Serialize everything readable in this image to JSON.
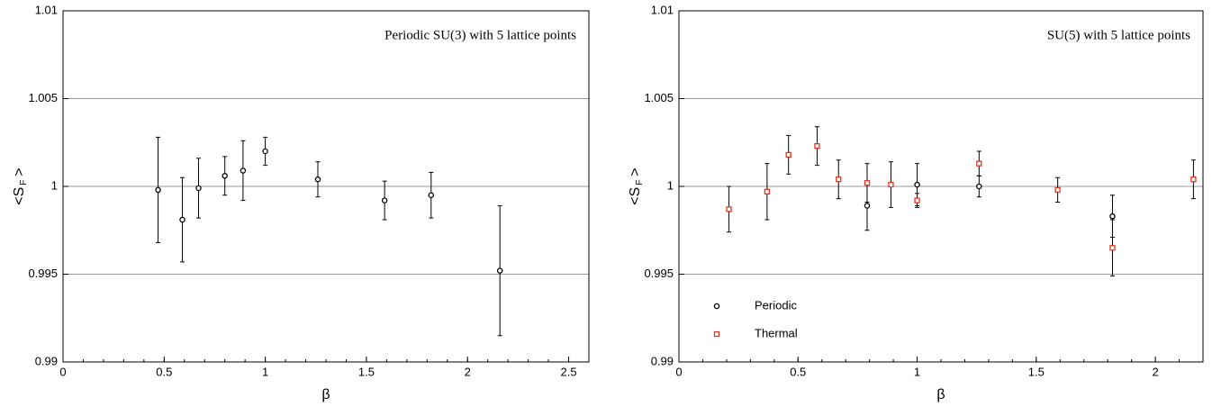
{
  "chart_data": [
    {
      "type": "scatter",
      "annotation": "Periodic SU(3) with 5 lattice points",
      "xlabel": "β",
      "ylabel": [
        "<S",
        "F",
        ">"
      ],
      "xlim": [
        0,
        2.6
      ],
      "xticks": [
        0,
        0.5,
        1,
        1.5,
        2,
        2.5
      ],
      "ylim": [
        0.99,
        1.01
      ],
      "yticks": [
        0.99,
        0.995,
        1,
        1.005,
        1.01
      ],
      "grid": true,
      "series": [
        {
          "color": "#000000",
          "marker": "circle",
          "x": [
            0.47,
            0.59,
            0.67,
            0.8,
            0.89,
            1.0,
            1.26,
            1.59,
            1.82,
            2.16
          ],
          "values": [
            0.9998,
            0.9981,
            0.9999,
            1.0006,
            1.0009,
            1.002,
            1.0004,
            0.9992,
            0.9995,
            0.9952
          ],
          "errors": [
            0.003,
            0.0024,
            0.0017,
            0.0011,
            0.0017,
            0.0008,
            0.001,
            0.0011,
            0.0013,
            0.0037
          ]
        }
      ]
    },
    {
      "type": "scatter",
      "annotation": "SU(5) with 5 lattice points",
      "xlabel": "β",
      "ylabel": [
        "<S",
        "F",
        ">"
      ],
      "xlim": [
        0,
        2.2
      ],
      "xticks": [
        0,
        0.5,
        1,
        1.5,
        2
      ],
      "ylim": [
        0.99,
        1.01
      ],
      "yticks": [
        0.99,
        0.995,
        1,
        1.005,
        1.01
      ],
      "grid": true,
      "legend": "lower-left",
      "series": [
        {
          "name": "Periodic",
          "color": "#000000",
          "marker": "circle",
          "x": [
            0.79,
            1.0,
            1.26,
            1.82
          ],
          "values": [
            0.9989,
            1.0001,
            1.0,
            0.9983
          ],
          "errors": [
            0.0014,
            0.0012,
            0.0006,
            0.0012
          ]
        },
        {
          "name": "Thermal",
          "color": "#e8341c",
          "marker": "square",
          "x": [
            0.21,
            0.37,
            0.46,
            0.58,
            0.67,
            0.79,
            0.89,
            1.0,
            1.26,
            1.59,
            1.82,
            2.16
          ],
          "values": [
            0.9987,
            0.9997,
            1.0018,
            1.0023,
            1.0004,
            1.0002,
            1.0001,
            0.9992,
            1.0013,
            0.9998,
            0.9965,
            1.0004
          ],
          "errors": [
            0.0013,
            0.0016,
            0.0011,
            0.0011,
            0.0011,
            0.0011,
            0.0013,
            0.0004,
            0.0007,
            0.0007,
            0.0016,
            0.0011
          ]
        }
      ]
    }
  ]
}
